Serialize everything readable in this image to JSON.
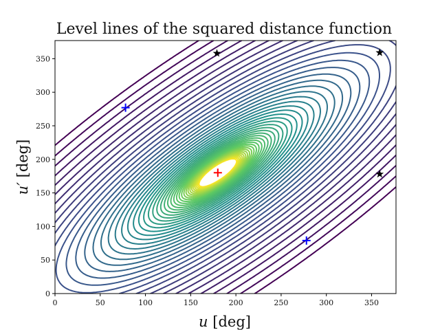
{
  "chart_data": {
    "type": "contour",
    "title": "Level lines of the squared distance function",
    "xlabel_var": "u",
    "xlabel_unit": " [deg]",
    "ylabel_var": "u′",
    "ylabel_unit": " [deg]",
    "xlim": [
      0,
      377
    ],
    "ylim": [
      0,
      377
    ],
    "xticks": [
      0,
      50,
      100,
      150,
      200,
      250,
      300,
      350
    ],
    "yticks": [
      0,
      50,
      100,
      150,
      200,
      250,
      300,
      350
    ],
    "grid": false,
    "colormap": [
      "#440154",
      "#3b528b",
      "#21918c",
      "#5ec962",
      "#fde725"
    ],
    "contour_center": [
      180,
      180
    ],
    "markers": [
      {
        "name": "center",
        "kind": "plus",
        "color": "#ff0000",
        "x": 180,
        "y": 180
      },
      {
        "name": "min-left",
        "kind": "plus",
        "color": "#0000ff",
        "x": 78,
        "y": 277
      },
      {
        "name": "min-right",
        "kind": "plus",
        "color": "#0000ff",
        "x": 278,
        "y": 79
      },
      {
        "name": "star-top-mid",
        "kind": "star",
        "color": "#000000",
        "x": 179,
        "y": 358
      },
      {
        "name": "star-top-right",
        "kind": "star",
        "color": "#000000",
        "x": 359,
        "y": 359
      },
      {
        "name": "star-right-mid",
        "kind": "star",
        "color": "#000000",
        "x": 359,
        "y": 178
      }
    ]
  }
}
